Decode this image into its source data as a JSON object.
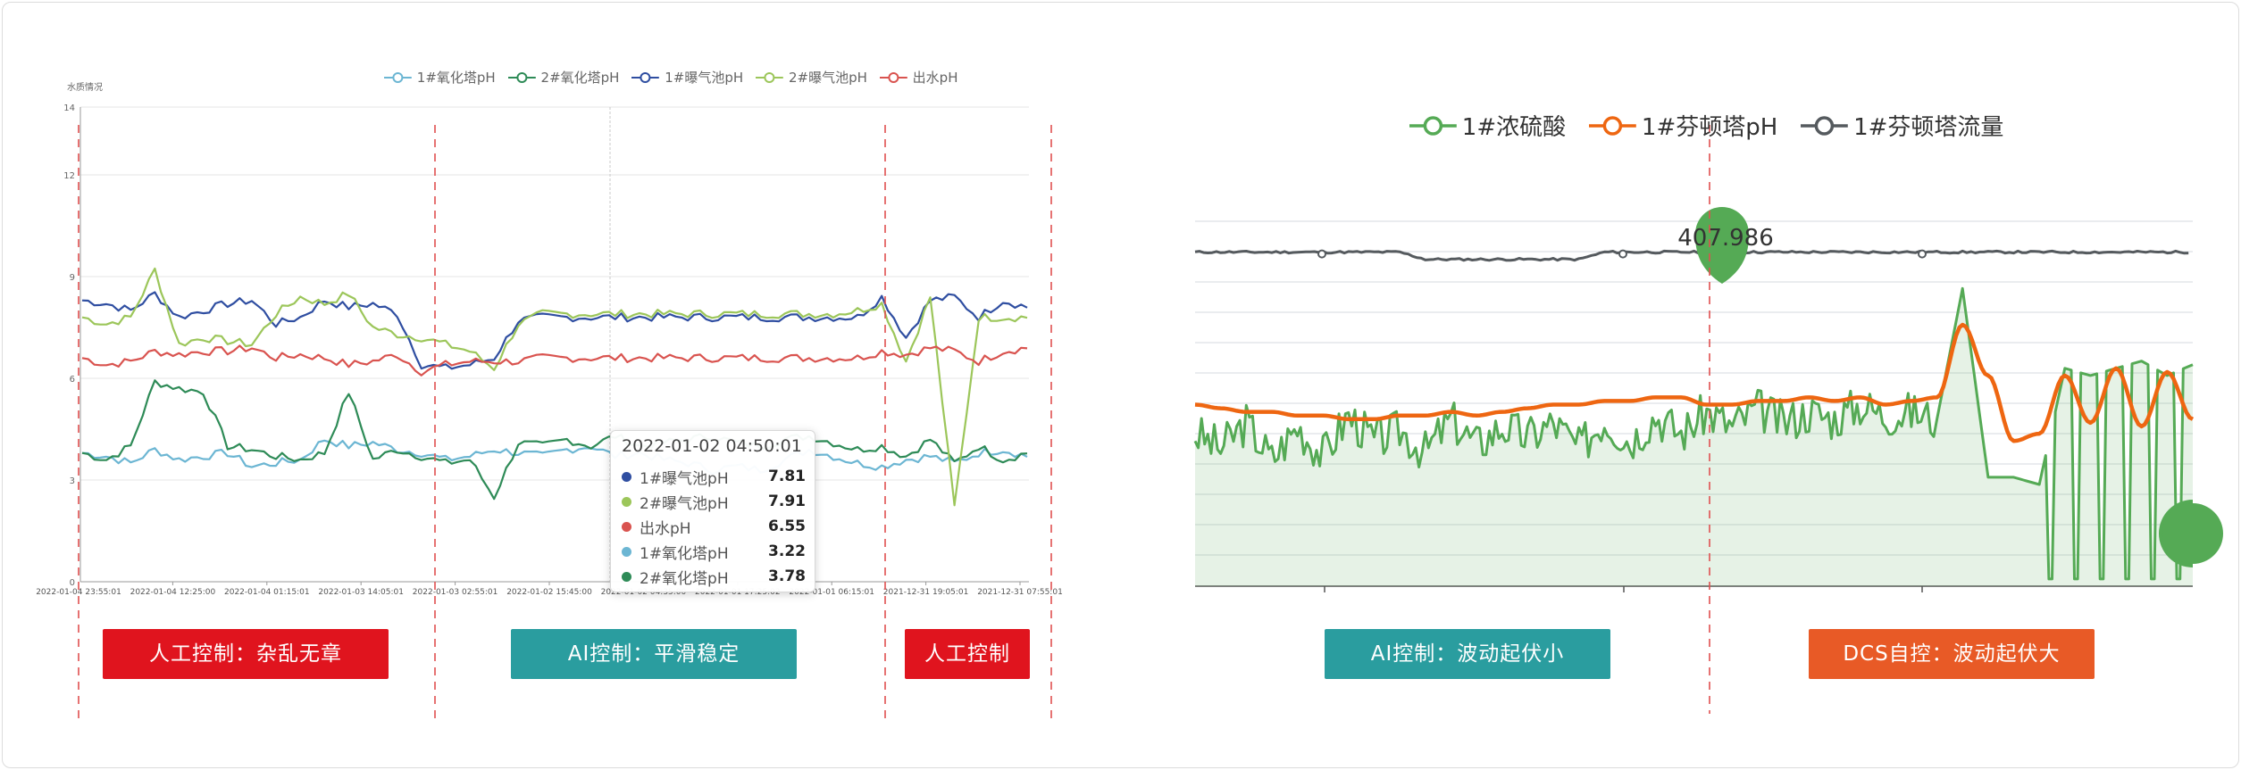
{
  "colors": {
    "left_1_oxidation": "#6cb6d3",
    "left_2_oxidation": "#2e8b57",
    "left_1_aeration": "#2f4ea1",
    "left_2_aeration": "#9cc65a",
    "left_outlet": "#d9534f",
    "right_acid": "#55aa55",
    "right_ph": "#ee6611",
    "right_flow": "#555a5e",
    "manual_box": "#e0141e",
    "ai_box": "#2a9d9f",
    "dcs_box": "#e85a26",
    "divider": "#e05050"
  },
  "left_chart": {
    "y_axis_name": "水质情况",
    "tooltip": {
      "title": "2022-01-02 04:50:01",
      "rows": [
        {
          "name": "1#曝气池pH",
          "value": "7.81",
          "color": "#2f4ea1"
        },
        {
          "name": "2#曝气池pH",
          "value": "7.91",
          "color": "#9cc65a"
        },
        {
          "name": "出水pH",
          "value": "6.55",
          "color": "#d9534f"
        },
        {
          "name": "1#氧化塔pH",
          "value": "3.22",
          "color": "#6cb6d3"
        },
        {
          "name": "2#氧化塔pH",
          "value": "3.78",
          "color": "#2e8b57"
        }
      ]
    },
    "labels": {
      "manual_1": "人工控制：杂乱无章",
      "ai": "AI控制：平滑稳定",
      "manual_2": "人工控制"
    }
  },
  "right_chart": {
    "callout_value": "407.986",
    "labels": {
      "ai": "AI控制：波动起伏小",
      "dcs": "DCS自控：波动起伏大"
    }
  },
  "chart_data": [
    {
      "type": "line",
      "title": "",
      "ylabel": "水质情况",
      "ylim": [
        0,
        14
      ],
      "y_ticks": [
        "0",
        "3",
        "6",
        "9",
        "12",
        "14"
      ],
      "x_tick_labels": [
        "2022-01-04 23:55:01",
        "2022-01-04 12:25:00",
        "2022-01-04 01:15:01",
        "2022-01-03 14:05:01",
        "2022-01-03 02:55:01",
        "2022-01-02 15:45:00",
        "2022-01-02 04:35:00",
        "2022-01-01 17:25:02",
        "2022-01-01 06:15:01",
        "2021-12-31 19:05:01",
        "2021-12-31 07:55:01"
      ],
      "legend_position": "top",
      "grid": true,
      "series": [
        {
          "name": "1#氧化塔pH",
          "color": "#6cb6d3",
          "values": [
            3.8,
            3.7,
            3.5,
            3.9,
            3.6,
            3.7,
            3.8,
            3.4,
            3.5,
            3.6,
            4.2,
            4.0,
            4.1,
            3.9,
            3.8,
            3.6,
            3.7,
            3.9,
            3.8,
            3.7,
            3.9,
            4.0,
            3.7,
            3.8,
            3.6,
            3.5,
            3.3,
            3.4,
            3.3,
            3.6,
            3.9,
            3.7,
            3.5,
            3.4,
            3.6,
            3.7,
            3.5,
            3.8,
            3.9,
            3.7
          ]
        },
        {
          "name": "2#氧化塔pH",
          "color": "#2e8b57",
          "values": [
            3.8,
            3.6,
            4.0,
            5.9,
            5.7,
            5.6,
            4.0,
            3.9,
            3.7,
            3.6,
            3.8,
            5.6,
            3.6,
            3.9,
            3.7,
            3.5,
            3.6,
            2.5,
            4.1,
            4.0,
            4.2,
            4.0,
            4.3,
            4.0,
            4.1,
            4.2,
            4.3,
            4.1,
            4.0,
            4.2,
            4.3,
            4.1,
            3.9,
            4.0,
            3.7,
            4.2,
            3.5,
            4.0,
            3.6,
            3.8
          ]
        },
        {
          "name": "1#曝气池pH",
          "color": "#2f4ea1",
          "values": [
            8.3,
            8.2,
            8.0,
            8.5,
            7.8,
            8.0,
            8.2,
            8.3,
            7.6,
            7.8,
            8.3,
            8.1,
            8.2,
            7.9,
            6.4,
            6.3,
            6.4,
            6.6,
            7.7,
            7.8,
            7.8,
            7.8,
            7.8,
            7.8,
            7.8,
            7.8,
            7.8,
            7.8,
            7.8,
            7.8,
            7.8,
            7.8,
            7.8,
            8.4,
            7.2,
            8.3,
            8.4,
            7.8,
            8.3,
            8.1
          ]
        },
        {
          "name": "2#曝气池pH",
          "color": "#9cc65a",
          "values": [
            7.8,
            7.6,
            7.8,
            9.2,
            7.0,
            7.2,
            7.1,
            7.0,
            7.9,
            8.4,
            8.2,
            8.5,
            7.5,
            7.3,
            7.2,
            7.0,
            6.8,
            6.3,
            7.6,
            7.9,
            7.9,
            7.9,
            7.9,
            7.9,
            7.9,
            7.9,
            7.9,
            7.9,
            7.9,
            7.9,
            7.9,
            7.9,
            8.0,
            8.2,
            6.5,
            8.4,
            2.2,
            7.8,
            7.8,
            7.8
          ]
        },
        {
          "name": "出水pH",
          "color": "#d9534f",
          "values": [
            6.6,
            6.4,
            6.5,
            6.8,
            6.7,
            6.8,
            6.8,
            6.9,
            6.6,
            6.7,
            6.6,
            6.4,
            6.5,
            6.7,
            6.2,
            6.4,
            6.5,
            6.5,
            6.5,
            6.6,
            6.6,
            6.6,
            6.6,
            6.6,
            6.6,
            6.6,
            6.6,
            6.6,
            6.6,
            6.6,
            6.6,
            6.6,
            6.6,
            6.8,
            6.7,
            6.9,
            6.8,
            6.5,
            6.8,
            6.9
          ]
        }
      ]
    },
    {
      "type": "line",
      "title": "",
      "legend_position": "top",
      "grid": true,
      "series": [
        {
          "name": "1#浓硫酸",
          "color": "#55aa55",
          "values": [
            0.42,
            0.38,
            0.45,
            0.35,
            0.44,
            0.36,
            0.47,
            0.4,
            0.43,
            0.37,
            0.46,
            0.39,
            0.44,
            0.41,
            0.45,
            0.38,
            0.46,
            0.4,
            0.47,
            0.42,
            0.48,
            0.44,
            0.49,
            0.45,
            0.48,
            0.46,
            0.5,
            0.47,
            0.48,
            0.46,
            0.82,
            0.3,
            0.3,
            0.28,
            0.6,
            0.58,
            0.6,
            0.62,
            0.58,
            0.61
          ]
        },
        {
          "name": "1#芬顿塔pH",
          "color": "#ee6611",
          "values": [
            0.5,
            0.49,
            0.48,
            0.48,
            0.47,
            0.47,
            0.46,
            0.46,
            0.47,
            0.47,
            0.48,
            0.47,
            0.48,
            0.49,
            0.5,
            0.5,
            0.51,
            0.51,
            0.52,
            0.52,
            0.5,
            0.5,
            0.51,
            0.51,
            0.52,
            0.51,
            0.52,
            0.5,
            0.51,
            0.52,
            0.72,
            0.58,
            0.4,
            0.42,
            0.58,
            0.45,
            0.6,
            0.44,
            0.59,
            0.46
          ]
        },
        {
          "name": "1#芬顿塔流量",
          "color": "#555a5e",
          "values": [
            0.92,
            0.92,
            0.92,
            0.92,
            0.92,
            0.92,
            0.92,
            0.92,
            0.92,
            0.9,
            0.9,
            0.9,
            0.9,
            0.9,
            0.9,
            0.9,
            0.92,
            0.92,
            0.92,
            0.92,
            0.92,
            0.92,
            0.92,
            0.92,
            0.92,
            0.92,
            0.92,
            0.92,
            0.92,
            0.92,
            0.92,
            0.92,
            0.92,
            0.92,
            0.92,
            0.92,
            0.92,
            0.92,
            0.92,
            0.92
          ]
        }
      ]
    }
  ]
}
